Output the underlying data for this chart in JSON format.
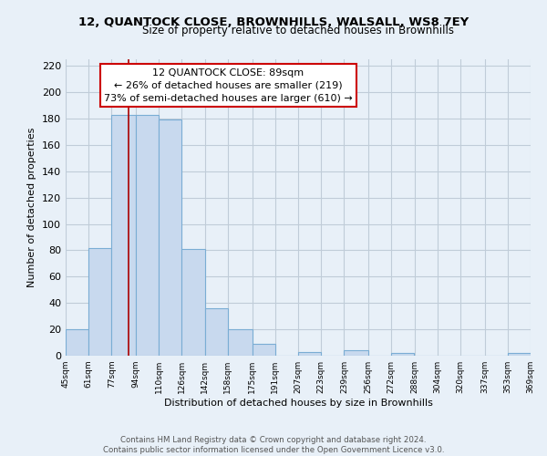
{
  "title": "12, QUANTOCK CLOSE, BROWNHILLS, WALSALL, WS8 7EY",
  "subtitle": "Size of property relative to detached houses in Brownhills",
  "xlabel": "Distribution of detached houses by size in Brownhills",
  "ylabel": "Number of detached properties",
  "bar_edges": [
    45,
    61,
    77,
    94,
    110,
    126,
    142,
    158,
    175,
    191,
    207,
    223,
    239,
    256,
    272,
    288,
    304,
    320,
    337,
    353,
    369
  ],
  "bar_heights": [
    20,
    82,
    183,
    183,
    179,
    81,
    36,
    20,
    9,
    0,
    3,
    0,
    4,
    0,
    2,
    0,
    0,
    0,
    0,
    2
  ],
  "bar_color": "#c8d9ee",
  "bar_edge_color": "#7aadd4",
  "property_line_x": 89,
  "property_line_color": "#aa0000",
  "ylim": [
    0,
    225
  ],
  "yticks": [
    0,
    20,
    40,
    60,
    80,
    100,
    120,
    140,
    160,
    180,
    200,
    220
  ],
  "annotation_line1": "12 QUANTOCK CLOSE: 89sqm",
  "annotation_line2": "← 26% of detached houses are smaller (219)",
  "annotation_line3": "73% of semi-detached houses are larger (610) →",
  "annotation_box_color": "#ffffff",
  "annotation_box_edge": "#cc0000",
  "footer_line1": "Contains HM Land Registry data © Crown copyright and database right 2024.",
  "footer_line2": "Contains public sector information licensed under the Open Government Licence v3.0.",
  "background_color": "#e8f0f8",
  "grid_color": "#c0ccd8",
  "tick_labels": [
    "45sqm",
    "61sqm",
    "77sqm",
    "94sqm",
    "110sqm",
    "126sqm",
    "142sqm",
    "158sqm",
    "175sqm",
    "191sqm",
    "207sqm",
    "223sqm",
    "239sqm",
    "256sqm",
    "272sqm",
    "288sqm",
    "304sqm",
    "320sqm",
    "337sqm",
    "353sqm",
    "369sqm"
  ]
}
